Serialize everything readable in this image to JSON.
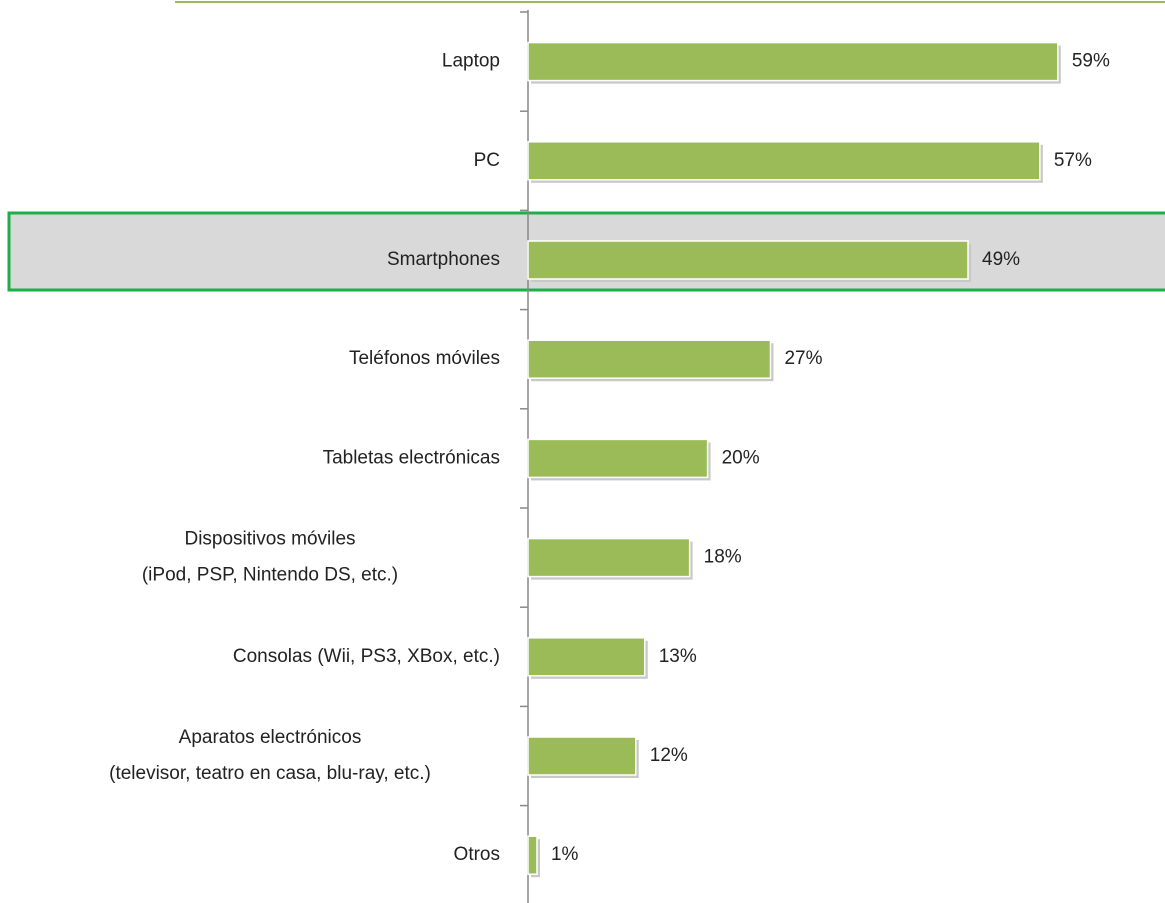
{
  "chart_data": {
    "type": "bar",
    "orientation": "horizontal",
    "categories": [
      "Laptop",
      "PC",
      "Smartphones",
      "Teléfonos móviles",
      "Tabletas electrónicas",
      "Dispositivos móviles\n(iPod, PSP, Nintendo DS, etc.)",
      "Consolas (Wii, PS3, XBox, etc.)",
      "Aparatos electrónicos\n(televisor, teatro en casa, blu-ray, etc.)",
      "Otros"
    ],
    "values": [
      59,
      57,
      49,
      27,
      20,
      18,
      13,
      12,
      1
    ],
    "value_labels": [
      "59%",
      "57%",
      "49%",
      "27%",
      "20%",
      "18%",
      "13%",
      "12%",
      "1%"
    ],
    "color": "#9bbb59"
  }
}
